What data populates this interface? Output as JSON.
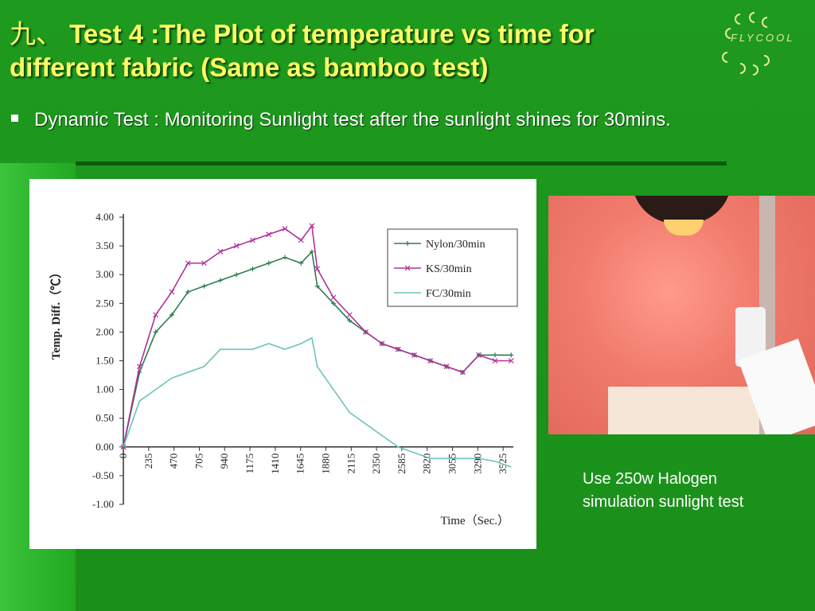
{
  "slide": {
    "title_prefix": "九、",
    "title_lines": [
      "Test 4 :The Plot of temperature vs time for",
      "different fabric   (Same as bamboo  test)"
    ],
    "bullet": "Dynamic Test : Monitoring Sunlight test after the sunlight shines for 30mins.",
    "caption_lines": [
      "Use 250w Halogen",
      "simulation sunlight test"
    ],
    "logo": "FLYCOOL"
  },
  "chart_data": {
    "type": "line",
    "x_label": "Time（Sec.）",
    "y_label": "Temp. Diff.（℃）",
    "x": [
      0,
      150,
      300,
      450,
      600,
      750,
      900,
      1050,
      1200,
      1350,
      1500,
      1650,
      1750,
      1800,
      1950,
      2100,
      2250,
      2400,
      2550,
      2700,
      2850,
      3000,
      3150,
      3300,
      3450,
      3600
    ],
    "series": [
      {
        "name": "Nylon/30min",
        "color": "#2e7d4f",
        "marker": "+",
        "values": [
          0,
          1.3,
          2.0,
          2.3,
          2.7,
          2.8,
          2.9,
          3.0,
          3.1,
          3.2,
          3.3,
          3.2,
          3.4,
          2.8,
          2.5,
          2.2,
          2.0,
          1.8,
          1.7,
          1.6,
          1.5,
          1.4,
          1.3,
          1.6,
          1.6,
          1.6
        ]
      },
      {
        "name": "KS/30min",
        "color": "#b0309a",
        "marker": "x",
        "values": [
          0,
          1.4,
          2.3,
          2.7,
          3.2,
          3.2,
          3.4,
          3.5,
          3.6,
          3.7,
          3.8,
          3.6,
          3.85,
          3.1,
          2.6,
          2.3,
          2.0,
          1.8,
          1.7,
          1.6,
          1.5,
          1.4,
          1.3,
          1.6,
          1.5,
          1.5
        ]
      },
      {
        "name": "FC/30min",
        "color": "#6cc3b8",
        "marker": "",
        "values": [
          0,
          0.8,
          1.0,
          1.2,
          1.3,
          1.4,
          1.7,
          1.7,
          1.7,
          1.8,
          1.7,
          1.8,
          1.9,
          1.4,
          1.0,
          0.6,
          0.4,
          0.2,
          0.0,
          -0.1,
          -0.2,
          -0.2,
          -0.2,
          -0.2,
          -0.25,
          -0.35
        ]
      }
    ],
    "xlim": [
      0,
      3620
    ],
    "xticks": [
      0,
      235,
      470,
      705,
      940,
      1175,
      1410,
      1645,
      1880,
      2115,
      2350,
      2585,
      2820,
      3055,
      3290,
      3525
    ],
    "ylim": [
      -1,
      4
    ],
    "yticks": [
      {
        "value": 4,
        "label": "4.00"
      },
      {
        "value": 3.5,
        "label": "3.50"
      },
      {
        "value": 3,
        "label": "3.00"
      },
      {
        "value": 2.5,
        "label": "2.50"
      },
      {
        "value": 2,
        "label": "2.00"
      },
      {
        "value": 1.5,
        "label": "1.50"
      },
      {
        "value": 1,
        "label": "1.00"
      },
      {
        "value": 0.5,
        "label": "0.50"
      },
      {
        "value": 0,
        "label": "0.00"
      },
      {
        "value": -0.5,
        "label": "-0.50"
      },
      {
        "value": -1,
        "label": "-1.00"
      }
    ],
    "legend": "upper-right"
  }
}
